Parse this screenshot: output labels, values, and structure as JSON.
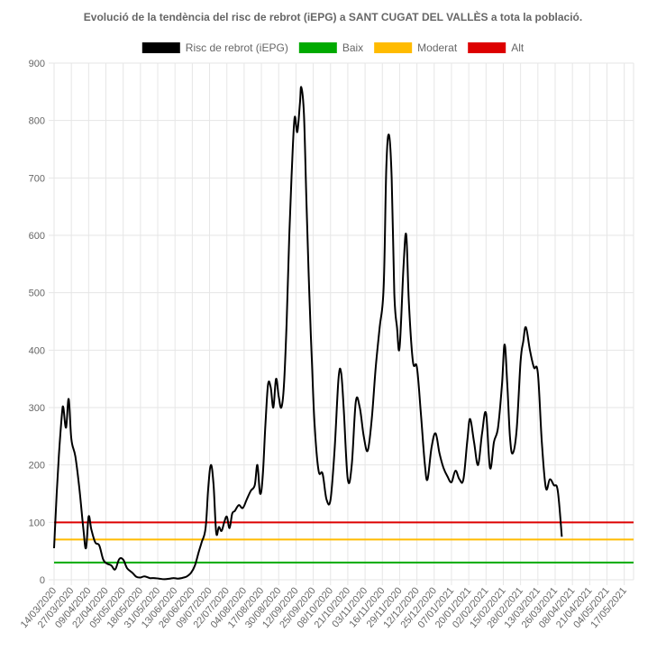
{
  "chart_data": {
    "type": "line",
    "title": "Evolució de la tendència del risc de rebrot (iEPG) a SANT CUGAT DEL VALLÈS a tota la població.",
    "ylim": [
      0,
      900
    ],
    "yticks": [
      0,
      100,
      200,
      300,
      400,
      500,
      600,
      700,
      800,
      900
    ],
    "xlim": [
      "14/03/2020",
      "24/05/2021"
    ],
    "x_tick_labels": [
      "14/03/2020",
      "27/03/2020",
      "09/04/2020",
      "22/04/2020",
      "05/05/2020",
      "18/05/2020",
      "31/05/2020",
      "13/06/2020",
      "26/06/2020",
      "09/07/2020",
      "22/07/2020",
      "04/08/2020",
      "17/08/2020",
      "30/08/2020",
      "12/09/2020",
      "25/09/2020",
      "08/10/2020",
      "21/10/2020",
      "03/11/2020",
      "16/11/2020",
      "29/11/2020",
      "12/12/2020",
      "25/12/2020",
      "07/01/2021",
      "20/01/2021",
      "02/02/2021",
      "15/02/2021",
      "28/02/2021",
      "13/03/2021",
      "26/03/2021",
      "08/04/2021",
      "21/04/2021",
      "04/05/2021",
      "17/05/2021"
    ],
    "grid": true,
    "legend_position": "top",
    "series": [
      {
        "name": "Risc de rebrot (iEPG)",
        "color": "#000000",
        "points": [
          [
            "14/03/2020",
            55
          ],
          [
            "16/03/2020",
            150
          ],
          [
            "18/03/2020",
            230
          ],
          [
            "20/03/2020",
            290
          ],
          [
            "21/03/2020",
            300
          ],
          [
            "23/03/2020",
            265
          ],
          [
            "25/03/2020",
            315
          ],
          [
            "27/03/2020",
            245
          ],
          [
            "30/03/2020",
            215
          ],
          [
            "02/04/2020",
            160
          ],
          [
            "05/04/2020",
            90
          ],
          [
            "07/04/2020",
            55
          ],
          [
            "09/04/2020",
            110
          ],
          [
            "11/04/2020",
            88
          ],
          [
            "14/04/2020",
            65
          ],
          [
            "17/04/2020",
            60
          ],
          [
            "20/04/2020",
            35
          ],
          [
            "23/04/2020",
            28
          ],
          [
            "26/04/2020",
            25
          ],
          [
            "29/04/2020",
            18
          ],
          [
            "02/05/2020",
            36
          ],
          [
            "05/05/2020",
            35
          ],
          [
            "08/05/2020",
            20
          ],
          [
            "12/05/2020",
            12
          ],
          [
            "15/05/2020",
            5
          ],
          [
            "18/05/2020",
            4
          ],
          [
            "21/05/2020",
            6
          ],
          [
            "25/05/2020",
            3
          ],
          [
            "28/05/2020",
            3
          ],
          [
            "01/06/2020",
            2
          ],
          [
            "05/06/2020",
            1
          ],
          [
            "09/06/2020",
            2
          ],
          [
            "12/06/2020",
            3
          ],
          [
            "15/06/2020",
            2
          ],
          [
            "18/06/2020",
            3
          ],
          [
            "22/06/2020",
            6
          ],
          [
            "25/06/2020",
            12
          ],
          [
            "28/06/2020",
            25
          ],
          [
            "01/07/2020",
            50
          ],
          [
            "03/07/2020",
            65
          ],
          [
            "06/07/2020",
            90
          ],
          [
            "08/07/2020",
            160
          ],
          [
            "10/07/2020",
            200
          ],
          [
            "12/07/2020",
            165
          ],
          [
            "14/07/2020",
            82
          ],
          [
            "16/07/2020",
            92
          ],
          [
            "18/07/2020",
            85
          ],
          [
            "20/07/2020",
            100
          ],
          [
            "22/07/2020",
            110
          ],
          [
            "24/07/2020",
            90
          ],
          [
            "26/07/2020",
            115
          ],
          [
            "28/07/2020",
            120
          ],
          [
            "31/07/2020",
            130
          ],
          [
            "03/08/2020",
            125
          ],
          [
            "06/08/2020",
            140
          ],
          [
            "09/08/2020",
            155
          ],
          [
            "12/08/2020",
            165
          ],
          [
            "14/08/2020",
            200
          ],
          [
            "16/08/2020",
            150
          ],
          [
            "18/08/2020",
            180
          ],
          [
            "20/08/2020",
            270
          ],
          [
            "22/08/2020",
            340
          ],
          [
            "24/08/2020",
            335
          ],
          [
            "26/08/2020",
            300
          ],
          [
            "28/08/2020",
            350
          ],
          [
            "30/08/2020",
            320
          ],
          [
            "01/09/2020",
            300
          ],
          [
            "03/09/2020",
            340
          ],
          [
            "05/09/2020",
            450
          ],
          [
            "07/09/2020",
            600
          ],
          [
            "09/09/2020",
            720
          ],
          [
            "11/09/2020",
            805
          ],
          [
            "13/09/2020",
            780
          ],
          [
            "15/09/2020",
            830
          ],
          [
            "16/09/2020",
            858
          ],
          [
            "18/09/2020",
            810
          ],
          [
            "20/09/2020",
            650
          ],
          [
            "22/09/2020",
            500
          ],
          [
            "24/09/2020",
            380
          ],
          [
            "26/09/2020",
            270
          ],
          [
            "29/09/2020",
            190
          ],
          [
            "02/10/2020",
            185
          ],
          [
            "05/10/2020",
            140
          ],
          [
            "08/10/2020",
            140
          ],
          [
            "11/10/2020",
            225
          ],
          [
            "14/10/2020",
            350
          ],
          [
            "16/10/2020",
            360
          ],
          [
            "18/10/2020",
            295
          ],
          [
            "21/10/2020",
            175
          ],
          [
            "24/10/2020",
            200
          ],
          [
            "27/10/2020",
            310
          ],
          [
            "30/10/2020",
            300
          ],
          [
            "02/11/2020",
            250
          ],
          [
            "05/11/2020",
            225
          ],
          [
            "08/11/2020",
            280
          ],
          [
            "11/11/2020",
            370
          ],
          [
            "14/11/2020",
            440
          ],
          [
            "17/11/2020",
            510
          ],
          [
            "19/11/2020",
            720
          ],
          [
            "21/11/2020",
            775
          ],
          [
            "23/11/2020",
            700
          ],
          [
            "25/11/2020",
            500
          ],
          [
            "27/11/2020",
            440
          ],
          [
            "29/11/2020",
            405
          ],
          [
            "02/12/2020",
            550
          ],
          [
            "04/12/2020",
            600
          ],
          [
            "06/12/2020",
            480
          ],
          [
            "09/12/2020",
            380
          ],
          [
            "12/12/2020",
            370
          ],
          [
            "15/12/2020",
            290
          ],
          [
            "18/12/2020",
            200
          ],
          [
            "20/12/2020",
            175
          ],
          [
            "23/12/2020",
            230
          ],
          [
            "26/12/2020",
            255
          ],
          [
            "29/12/2020",
            220
          ],
          [
            "01/01/2021",
            195
          ],
          [
            "04/01/2021",
            180
          ],
          [
            "07/01/2021",
            170
          ],
          [
            "10/01/2021",
            190
          ],
          [
            "13/01/2021",
            175
          ],
          [
            "16/01/2021",
            175
          ],
          [
            "19/01/2021",
            245
          ],
          [
            "21/01/2021",
            280
          ],
          [
            "24/01/2021",
            240
          ],
          [
            "27/01/2021",
            200
          ],
          [
            "30/01/2021",
            255
          ],
          [
            "02/02/2021",
            290
          ],
          [
            "05/02/2021",
            195
          ],
          [
            "08/02/2021",
            240
          ],
          [
            "11/02/2021",
            265
          ],
          [
            "14/02/2021",
            340
          ],
          [
            "16/02/2021",
            410
          ],
          [
            "18/02/2021",
            340
          ],
          [
            "20/02/2021",
            250
          ],
          [
            "22/02/2021",
            220
          ],
          [
            "25/02/2021",
            260
          ],
          [
            "28/02/2021",
            380
          ],
          [
            "02/03/2021",
            415
          ],
          [
            "04/03/2021",
            440
          ],
          [
            "07/03/2021",
            400
          ],
          [
            "10/03/2021",
            370
          ],
          [
            "13/03/2021",
            360
          ],
          [
            "16/03/2021",
            240
          ],
          [
            "19/03/2021",
            160
          ],
          [
            "22/03/2021",
            175
          ],
          [
            "25/03/2021",
            165
          ],
          [
            "28/03/2021",
            155
          ],
          [
            "31/03/2021",
            75
          ]
        ]
      },
      {
        "name": "Baix",
        "color": "#00aa00",
        "value": 30
      },
      {
        "name": "Moderat",
        "color": "#ffbb00",
        "value": 70
      },
      {
        "name": "Alt",
        "color": "#dd0000",
        "value": 100
      }
    ]
  }
}
